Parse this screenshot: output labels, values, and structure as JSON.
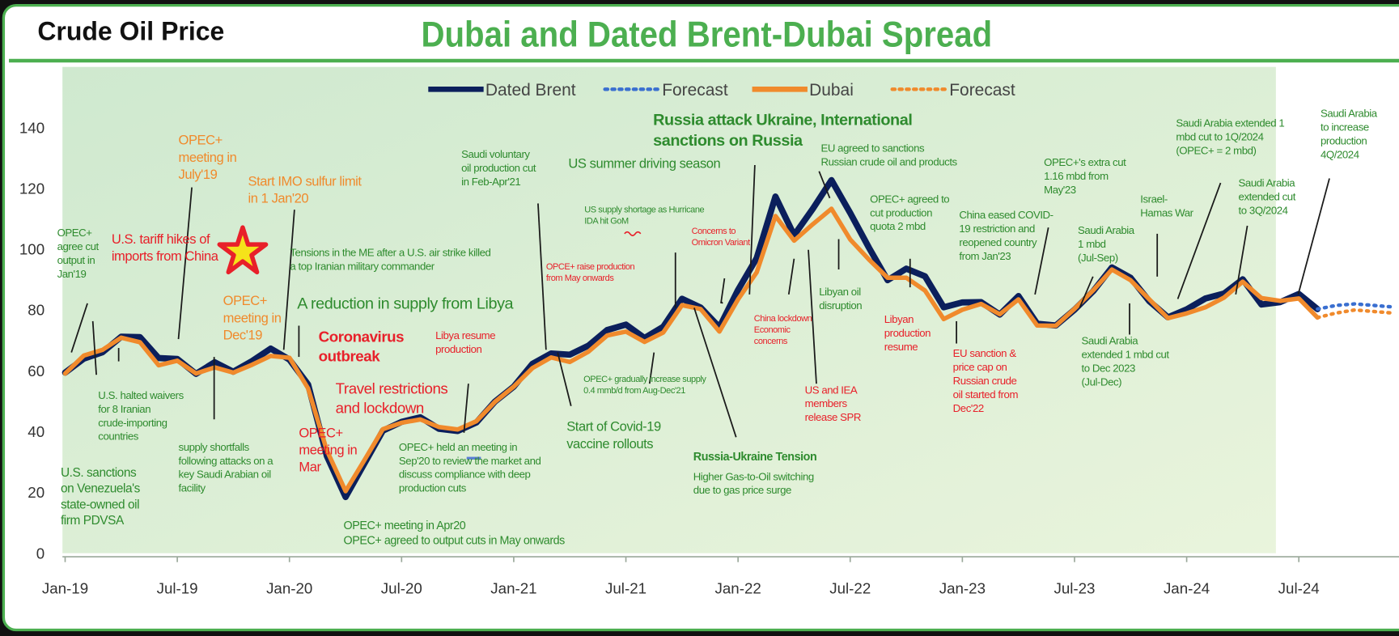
{
  "header": {
    "title": "Crude Oil Price"
  },
  "chart_data": {
    "type": "line",
    "title": "Dubai and Dated Brent-Dubai Spread",
    "categories": [
      "Jan-19",
      null,
      null,
      null,
      null,
      null,
      "Jul-19",
      null,
      null,
      null,
      null,
      null,
      "Jan-20",
      null,
      null,
      null,
      null,
      null,
      "Jul-20",
      null,
      null,
      null,
      null,
      null,
      "Jan-21",
      null,
      null,
      null,
      null,
      null,
      "Jul-21",
      null,
      null,
      null,
      null,
      null,
      "Jan-22",
      null,
      null,
      null,
      null,
      null,
      "Jul-22",
      null,
      null,
      null,
      null,
      null,
      "Jan-23",
      null,
      null,
      null,
      null,
      null,
      "Jul-23",
      null,
      null,
      null,
      null,
      null,
      "Jan-24",
      null,
      null,
      null,
      null,
      null,
      "Jul-24",
      null,
      null,
      null,
      null,
      null
    ],
    "series": [
      {
        "name": "Dated Brent",
        "color": "#0b1f5c",
        "style": "solid",
        "values": [
          59.4,
          64.0,
          66.1,
          71.2,
          71.1,
          64.2,
          63.9,
          59.0,
          62.8,
          59.7,
          63.2,
          67.3,
          63.7,
          55.5,
          32.0,
          18.5,
          29.4,
          40.3,
          43.2,
          44.7,
          40.9,
          40.2,
          43.0,
          49.9,
          54.8,
          62.3,
          65.7,
          65.3,
          68.3,
          73.4,
          75.2,
          70.8,
          74.5,
          83.7,
          80.8,
          74.3,
          86.6,
          97.1,
          117.3,
          104.6,
          113.3,
          122.7,
          111.9,
          100.5,
          89.8,
          93.6,
          91.1,
          80.9,
          82.5,
          82.6,
          78.5,
          84.6,
          75.5,
          74.9,
          80.1,
          86.2,
          94.0,
          90.6,
          82.9,
          77.6,
          80.2,
          83.8,
          85.4,
          90.1,
          81.8,
          82.6,
          85.3,
          80.3,
          null,
          null,
          null,
          null
        ]
      },
      {
        "name": "Forecast",
        "color": "#3a6fd0",
        "style": "dotted",
        "values": [
          null,
          null,
          null,
          null,
          null,
          null,
          null,
          null,
          null,
          null,
          null,
          null,
          null,
          null,
          null,
          null,
          null,
          null,
          null,
          null,
          null,
          null,
          null,
          null,
          null,
          null,
          null,
          null,
          null,
          null,
          null,
          null,
          null,
          null,
          null,
          null,
          null,
          null,
          null,
          null,
          null,
          null,
          null,
          null,
          null,
          null,
          null,
          null,
          null,
          null,
          null,
          null,
          null,
          null,
          null,
          null,
          null,
          null,
          null,
          null,
          null,
          null,
          null,
          null,
          null,
          null,
          null,
          80.3,
          81.5,
          82.0,
          81.5,
          81.0
        ]
      },
      {
        "name": "Dubai",
        "color": "#f08a2c",
        "style": "solid",
        "values": [
          59.1,
          65.0,
          66.9,
          70.9,
          69.4,
          61.8,
          63.3,
          59.1,
          61.1,
          59.4,
          62.0,
          64.9,
          64.3,
          54.2,
          33.8,
          20.4,
          30.5,
          40.8,
          42.9,
          44.0,
          41.5,
          40.7,
          43.4,
          49.8,
          54.8,
          60.9,
          64.4,
          62.9,
          66.3,
          71.6,
          72.9,
          69.5,
          72.6,
          81.6,
          80.3,
          72.9,
          83.5,
          92.4,
          110.9,
          102.8,
          108.2,
          113.3,
          103.2,
          96.6,
          90.6,
          90.6,
          86.4,
          77.0,
          80.1,
          82.0,
          78.6,
          83.5,
          74.9,
          74.8,
          80.4,
          86.5,
          93.3,
          89.8,
          83.5,
          77.3,
          78.9,
          80.9,
          84.1,
          89.3,
          83.9,
          83.0,
          83.8,
          77.5,
          null,
          null,
          null,
          null
        ]
      },
      {
        "name": "Forecast",
        "color": "#f08a2c",
        "style": "dotted",
        "values": [
          null,
          null,
          null,
          null,
          null,
          null,
          null,
          null,
          null,
          null,
          null,
          null,
          null,
          null,
          null,
          null,
          null,
          null,
          null,
          null,
          null,
          null,
          null,
          null,
          null,
          null,
          null,
          null,
          null,
          null,
          null,
          null,
          null,
          null,
          null,
          null,
          null,
          null,
          null,
          null,
          null,
          null,
          null,
          null,
          null,
          null,
          null,
          null,
          null,
          null,
          null,
          null,
          null,
          null,
          null,
          null,
          null,
          null,
          null,
          null,
          null,
          null,
          null,
          null,
          null,
          null,
          null,
          77.5,
          79.0,
          80.0,
          79.5,
          79.0
        ]
      }
    ],
    "ylim": [
      0,
      140
    ],
    "yticks": [
      0,
      20,
      40,
      60,
      80,
      100,
      120,
      140
    ],
    "grid": false,
    "legend": "top",
    "annotations": [
      {
        "lines": [
          "OPEC+",
          "agree cut",
          "output in",
          "Jan'19"
        ],
        "color": "#2e8b2e"
      },
      {
        "lines": [
          "U.S. tariff hikes of",
          "imports from China"
        ],
        "color": "#e8202a"
      },
      {
        "lines": [
          "OPEC+",
          "meeting in",
          "July'19"
        ],
        "color": "#f08a2c"
      },
      {
        "lines": [
          "Start IMO sulfur limit",
          "in 1 Jan'20"
        ],
        "color": "#f08a2c"
      },
      {
        "lines": [
          "Tensions in the ME after a U.S. air strike killed",
          "a top Iranian military commander"
        ],
        "color": "#2e8b2e"
      },
      {
        "lines": [
          "OPEC+",
          "meeting in",
          "Dec'19"
        ],
        "color": "#f08a2c"
      },
      {
        "lines": [
          "A reduction in supply from Libya"
        ],
        "color": "#2e8b2e"
      },
      {
        "lines": [
          "Coronavirus",
          "outbreak"
        ],
        "color": "#e8202a"
      },
      {
        "lines": [
          "Travel restrictions",
          "and lockdown"
        ],
        "color": "#e8202a"
      },
      {
        "lines": [
          "OPEC+",
          "meeting in",
          "Mar"
        ],
        "color": "#e8202a"
      },
      {
        "lines": [
          "U.S. halted waivers",
          "for 8 Iranian",
          "crude-importing",
          "countries"
        ],
        "color": "#2e8b2e"
      },
      {
        "lines": [
          "supply shortfalls",
          "following attacks on a",
          "key Saudi Arabian oil",
          "facility"
        ],
        "color": "#2e8b2e"
      },
      {
        "lines": [
          "U.S. sanctions",
          "on Venezuela's",
          "state-owned oil",
          "firm PDVSA"
        ],
        "color": "#2e8b2e"
      },
      {
        "lines": [
          "Libya resume",
          "production"
        ],
        "color": "#e8202a"
      },
      {
        "lines": [
          "OPEC+ held an meeting in",
          "Sep'20 to review the market and",
          "discuss compliance with deep",
          "production cuts"
        ],
        "color": "#2e8b2e"
      },
      {
        "lines": [
          "OPEC+ meeting in Apr20",
          "OPEC+ agreed to output cuts in May onwards"
        ],
        "color": "#2e8b2e"
      },
      {
        "lines": [
          "Saudi voluntary",
          "oil production cut",
          "in Feb-Apr'21"
        ],
        "color": "#2e8b2e"
      },
      {
        "lines": [
          "US summer driving season"
        ],
        "color": "#2e8b2e"
      },
      {
        "lines": [
          "US supply shortage as Hurricane",
          "IDA hit GoM"
        ],
        "color": "#2e8b2e"
      },
      {
        "lines": [
          "OPCE+ raise production",
          "from May onwards"
        ],
        "color": "#e8202a"
      },
      {
        "lines": [
          "OPEC+ gradually increase supply",
          "0.4 mmb/d from Aug-Dec'21"
        ],
        "color": "#2e8b2e"
      },
      {
        "lines": [
          "Start of Covid-19",
          "vaccine rollouts"
        ],
        "color": "#2e8b2e"
      },
      {
        "lines": [
          "Russia attack Ukraine, International",
          "sanctions on Russia"
        ],
        "color": "#2e8b2e"
      },
      {
        "lines": [
          "Concerns to",
          "Omicron Variant"
        ],
        "color": "#e8202a"
      },
      {
        "lines": [
          "Russia-Ukraine Tension"
        ],
        "color": "#2e8b2e"
      },
      {
        "lines": [
          "Higher Gas-to-Oil switching",
          "due to gas price surge"
        ],
        "color": "#2e8b2e"
      },
      {
        "lines": [
          "EU agreed to sanctions",
          "Russian crude oil and products"
        ],
        "color": "#2e8b2e"
      },
      {
        "lines": [
          "China lockdown",
          "Economic",
          "concerns"
        ],
        "color": "#e8202a"
      },
      {
        "lines": [
          "US and IEA",
          "members",
          "release SPR"
        ],
        "color": "#e8202a"
      },
      {
        "lines": [
          "Libyan oil",
          "disruption"
        ],
        "color": "#2e8b2e"
      },
      {
        "lines": [
          "OPEC+ agreed to",
          "cut production",
          "quota 2 mbd"
        ],
        "color": "#2e8b2e"
      },
      {
        "lines": [
          "Libyan",
          "production",
          "resume"
        ],
        "color": "#e8202a"
      },
      {
        "lines": [
          "China eased COVID-",
          "19 restriction and",
          "reopened country",
          "from Jan'23"
        ],
        "color": "#2e8b2e"
      },
      {
        "lines": [
          "EU sanction &",
          "price cap on",
          "Russian crude",
          "oil started from",
          "Dec'22"
        ],
        "color": "#e8202a"
      },
      {
        "lines": [
          "OPEC+'s extra cut",
          "1.16 mbd from",
          "May'23"
        ],
        "color": "#2e8b2e"
      },
      {
        "lines": [
          "Saudi Arabia",
          "1 mbd",
          "(Jul-Sep)"
        ],
        "color": "#2e8b2e"
      },
      {
        "lines": [
          "Israel-",
          "Hamas War"
        ],
        "color": "#2e8b2e"
      },
      {
        "lines": [
          "Saudi Arabia",
          "extended 1 mbd cut",
          "to Dec 2023",
          "(Jul-Dec)"
        ],
        "color": "#2e8b2e"
      },
      {
        "lines": [
          "Saudi Arabia extended 1",
          "mbd cut to 1Q/2024",
          "(OPEC+ = 2 mbd)"
        ],
        "color": "#2e8b2e"
      },
      {
        "lines": [
          "Saudi Arabia",
          "extended cut",
          "to 3Q/2024"
        ],
        "color": "#2e8b2e"
      },
      {
        "lines": [
          "Saudi Arabia",
          "to increase",
          "production",
          "4Q/2024"
        ],
        "color": "#2e8b2e"
      }
    ]
  }
}
